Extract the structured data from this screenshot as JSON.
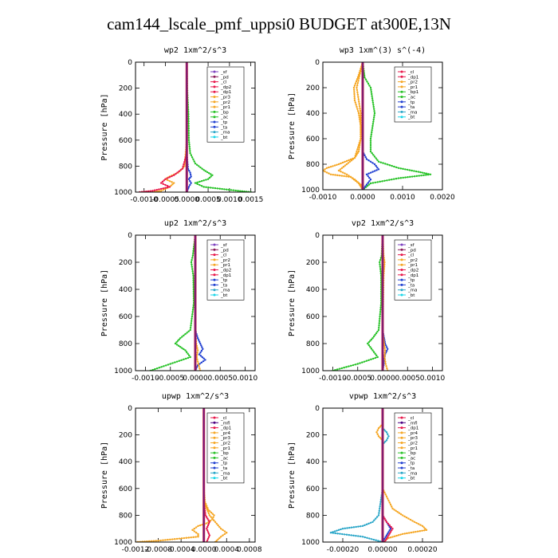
{
  "figure": {
    "title": "cam144_lscale_pmf_uppsi0  BUDGET at300E,13N"
  },
  "colors": {
    "sf": "#7b3fbf",
    "pd": "#8b1a5a",
    "cl": "#e8184b",
    "dp2": "#e8184b",
    "dp1": "#e8184b",
    "pr3": "#f5a623",
    "pr2": "#f5a623",
    "pr1": "#f5a623",
    "pr4": "#f5a623",
    "bp": "#27c227",
    "bp1": "#27c227",
    "ac": "#27c227",
    "tp": "#1f3fd1",
    "ta": "#1f3fd1",
    "ma": "#2aa6c8",
    "bt": "#19d6e8",
    "mfl": "#4b0082"
  },
  "chart_data": [
    {
      "id": "wp2",
      "type": "line",
      "title": "wp2  1xm^2/s^3",
      "ylabel": "Pressure [hPa]",
      "ylim": [
        1000,
        0
      ],
      "xlim": [
        -0.0012,
        0.0016
      ],
      "xticks": [
        -0.001,
        -0.0005,
        0.0,
        0.0005,
        0.001,
        0.0015
      ],
      "xtick_labels": [
        "-0.0010",
        "-0.0005",
        "0.0000",
        "0.0005",
        "0.0010",
        "0.0015"
      ],
      "yticks": [
        0,
        200,
        400,
        600,
        800,
        1000
      ],
      "legend": [
        "_sf",
        "_pd",
        "_cl",
        "_dp2",
        "_dp1",
        "_pr3",
        "_pr2",
        "_pr1",
        "_bp",
        "_ac",
        "_tp",
        "_ta",
        "_ma",
        "_bt"
      ],
      "series": [
        {
          "name": "_ac",
          "color": "#27c227",
          "p": [
            0,
            200,
            400,
            600,
            700,
            780,
            830,
            870,
            900,
            930,
            960,
            990,
            1000
          ],
          "x": [
            0,
            1e-05,
            4e-05,
            5e-05,
            8e-05,
            0.0002,
            0.0004,
            0.0006,
            0.0005,
            0.0002,
            0.0004,
            0.0012,
            0.0015
          ]
        },
        {
          "name": "_pr1",
          "color": "#f5a623",
          "p": [
            0,
            600,
            800,
            850,
            880,
            900,
            930,
            960,
            990,
            1000
          ],
          "x": [
            0,
            0,
            -5e-05,
            -0.0002,
            -0.0004,
            -0.0005,
            -0.0003,
            -0.0004,
            -0.0006,
            -0.0008
          ]
        },
        {
          "name": "_dp1",
          "color": "#e8184b",
          "p": [
            0,
            700,
            820,
            870,
            900,
            930,
            960,
            990,
            1000
          ],
          "x": [
            0,
            0,
            -0.0001,
            -0.0003,
            -0.0005,
            -0.0006,
            -0.0004,
            -0.0008,
            -0.0011
          ]
        },
        {
          "name": "_tp",
          "color": "#1f3fd1",
          "p": [
            0,
            700,
            820,
            850,
            880,
            900,
            930,
            960,
            1000
          ],
          "x": [
            0,
            0,
            3e-05,
            8e-05,
            0.0001,
            5e-05,
            0.0001,
            5e-05,
            0
          ]
        }
      ]
    },
    {
      "id": "wp3",
      "type": "line",
      "title": "wp3  1xm^(3) s^(-4)",
      "ylabel": "Pressure [hPa]",
      "ylim": [
        1000,
        0
      ],
      "xlim": [
        -0.001,
        0.002
      ],
      "xticks": [
        -0.001,
        0.0,
        0.001,
        0.002
      ],
      "xtick_labels": [
        "-0.0010",
        "0.0000",
        "0.0010",
        "0.0020"
      ],
      "yticks": [
        0,
        200,
        400,
        600,
        800,
        1000
      ],
      "legend": [
        "_cl",
        "_dp1",
        "_pr2",
        "_pr1",
        "_bp1",
        "_ac",
        "_tp",
        "_ta",
        "_ma",
        "_bt"
      ],
      "series": [
        {
          "name": "_ac",
          "color": "#27c227",
          "p": [
            0,
            120,
            200,
            300,
            400,
            500,
            600,
            700,
            780,
            830,
            860,
            880,
            910,
            950,
            1000
          ],
          "x": [
            0,
            5e-05,
            0.0002,
            0.00025,
            0.0003,
            0.00025,
            0.0002,
            0.0002,
            0.0004,
            0.0009,
            0.0014,
            0.0017,
            0.0009,
            0.0002,
            0
          ]
        },
        {
          "name": "_pr2",
          "color": "#f5a623",
          "p": [
            0,
            100,
            200,
            300,
            400,
            500,
            600,
            700,
            750,
            800,
            830,
            850,
            880,
            900,
            950,
            1000
          ],
          "x": [
            0,
            -0.0001,
            -0.00022,
            -0.0002,
            -0.0001,
            -5e-05,
            -5e-05,
            -0.0001,
            -0.0002,
            -0.0006,
            -0.0009,
            -0.001,
            -0.0008,
            -0.0003,
            -0.0001,
            0
          ]
        },
        {
          "name": "_pr1",
          "color": "#f5a623",
          "p": [
            0,
            200,
            400,
            600,
            750,
            800,
            850,
            880,
            920,
            960,
            1000
          ],
          "x": [
            0,
            -0.00015,
            -5e-05,
            -5e-05,
            -0.0002,
            -0.0004,
            -0.0006,
            -0.0004,
            -0.0002,
            -5e-05,
            0
          ]
        },
        {
          "name": "_tp",
          "color": "#1f3fd1",
          "p": [
            0,
            700,
            760,
            800,
            840,
            880,
            920,
            960,
            1000
          ],
          "x": [
            0,
            0,
            0.0001,
            0.0003,
            0.0004,
            0.0001,
            0.0002,
            0.0001,
            0
          ]
        }
      ]
    },
    {
      "id": "up2",
      "type": "line",
      "title": "up2  1xm^2/s^3",
      "ylabel": "Pressure [hPa]",
      "ylim": [
        1000,
        0
      ],
      "xlim": [
        -0.0012,
        0.0012
      ],
      "xticks": [
        -0.001,
        -0.0005,
        0.0,
        0.0005,
        0.001
      ],
      "xtick_labels": [
        "-0.0010",
        "-0.0005",
        "0.0000",
        "0.0005",
        "0.0010"
      ],
      "yticks": [
        0,
        200,
        400,
        600,
        800,
        1000
      ],
      "legend": [
        "_sf",
        "_pd",
        "_cl",
        "_pr2",
        "_pr1",
        "_dp2",
        "_dp1",
        "_tp",
        "_ta",
        "_ma",
        "_bt"
      ],
      "series": [
        {
          "name": "_dp1",
          "color": "#27c227",
          "p": [
            0,
            150,
            200,
            300,
            500,
            700,
            760,
            800,
            850,
            900,
            950,
            1000
          ],
          "x": [
            0,
            -5e-05,
            -8e-05,
            -4e-05,
            -3e-05,
            -0.0001,
            -0.0003,
            -0.0004,
            -0.0002,
            -0.0001,
            -0.0005,
            -0.0009
          ]
        },
        {
          "name": "_tp",
          "color": "#1f3fd1",
          "p": [
            0,
            700,
            760,
            800,
            840,
            880,
            920,
            960,
            1000
          ],
          "x": [
            0,
            0,
            5e-05,
            0.0001,
            0.00015,
            8e-05,
            0.0002,
            5e-05,
            0
          ]
        },
        {
          "name": "_pr1",
          "color": "#f5a623",
          "p": [
            0,
            700,
            800,
            850,
            900,
            950,
            1000
          ],
          "x": [
            0,
            0,
            2e-05,
            5e-05,
            3e-05,
            6e-05,
            0.0001
          ]
        }
      ]
    },
    {
      "id": "vp2",
      "type": "line",
      "title": "vp2  1xm^2/s^3",
      "ylabel": "Pressure [hPa]",
      "ylim": [
        1000,
        0
      ],
      "xlim": [
        -0.0012,
        0.0012
      ],
      "xticks": [
        -0.001,
        -0.0005,
        0.0,
        0.0005,
        0.001
      ],
      "xtick_labels": [
        "-0.0010",
        "-0.0005",
        "0.0000",
        "0.0005",
        "0.0010"
      ],
      "yticks": [
        0,
        200,
        400,
        600,
        800,
        1000
      ],
      "legend": [
        "_sf",
        "_pd",
        "_cl",
        "_pr2",
        "_pr1",
        "_dp2",
        "_dp1",
        "_tp",
        "_ta",
        "_ma",
        "_bt"
      ],
      "series": [
        {
          "name": "_dp1",
          "color": "#27c227",
          "p": [
            0,
            150,
            200,
            300,
            500,
            700,
            760,
            800,
            850,
            900,
            950,
            1000
          ],
          "x": [
            0,
            -2e-05,
            -6e-05,
            -3e-05,
            -3e-05,
            -8e-05,
            -0.0002,
            -0.0003,
            -0.0002,
            -0.0001,
            -0.0005,
            -0.001
          ]
        },
        {
          "name": "_tp",
          "color": "#1f3fd1",
          "p": [
            0,
            700,
            760,
            800,
            840,
            880,
            920,
            960,
            1000
          ],
          "x": [
            0,
            0,
            3e-05,
            5e-05,
            0.0001,
            5e-05,
            3e-05,
            2e-05,
            0
          ]
        },
        {
          "name": "_pr1",
          "color": "#f5a623",
          "p": [
            0,
            150,
            200,
            300,
            700,
            800,
            850,
            900,
            950,
            1000
          ],
          "x": [
            0,
            2e-05,
            4e-05,
            2e-05,
            0,
            3e-05,
            5e-05,
            4e-05,
            6e-05,
            0.0001
          ]
        }
      ]
    },
    {
      "id": "upwp",
      "type": "line",
      "title": "upwp  1xm^2/s^3",
      "ylabel": "Pressure [hPa]",
      "ylim": [
        1000,
        0
      ],
      "xlim": [
        -0.0012,
        0.0009
      ],
      "xticks": [
        -0.0012,
        -0.0008,
        -0.0004,
        0.0,
        0.0004,
        0.0008
      ],
      "xtick_labels": [
        "-0.0012",
        "-0.0008",
        "-0.0004",
        "0.0000",
        "0.0004",
        "0.0008"
      ],
      "yticks": [
        0,
        200,
        400,
        600,
        800,
        1000
      ],
      "legend": [
        "_cl",
        "_mfl",
        "_dp1",
        "_pr4",
        "_pr3",
        "_pr2",
        "_pr1",
        "_bp",
        "_ac",
        "_tp",
        "_ta",
        "_ma",
        "_bt"
      ],
      "series": [
        {
          "name": "_pr1",
          "color": "#f5a623",
          "p": [
            0,
            600,
            700,
            760,
            800,
            830,
            860,
            880,
            910,
            940,
            960,
            990,
            1000
          ],
          "x": [
            0,
            0,
            2e-05,
            8e-05,
            0.00018,
            0.00015,
            5e-05,
            -0.0001,
            -0.0002,
            -0.0001,
            -0.0001,
            -0.0008,
            -0.0012
          ]
        },
        {
          "name": "_pr2",
          "color": "#f5a623",
          "p": [
            0,
            700,
            800,
            850,
            900,
            930,
            960,
            1000
          ],
          "x": [
            0,
            0,
            0.0001,
            0.0002,
            0.0003,
            0.0004,
            0.0003,
            0.0002
          ]
        },
        {
          "name": "_dp1",
          "color": "#e8184b",
          "p": [
            0,
            700,
            800,
            850,
            900,
            950,
            1000
          ],
          "x": [
            0,
            0,
            3e-05,
            0.0001,
            5e-05,
            0.0001,
            5e-05
          ]
        }
      ]
    },
    {
      "id": "vpwp",
      "type": "line",
      "title": "vpwp  1xm^2/s^3",
      "ylabel": "Pressure [hPa]",
      "ylim": [
        1000,
        0
      ],
      "xlim": [
        -0.0003,
        0.0003
      ],
      "xticks": [
        -0.0002,
        0.0,
        0.0002
      ],
      "xtick_labels": [
        "-0.00020",
        "0.00000",
        "0.00020"
      ],
      "yticks": [
        0,
        200,
        400,
        600,
        800,
        1000
      ],
      "legend": [
        "_cl",
        "_mfl",
        "_dp1",
        "_pr4",
        "_pr3",
        "_pr2",
        "_pr1",
        "_bp",
        "_ac",
        "_tp",
        "_ta",
        "_ma",
        "_bt"
      ],
      "series": [
        {
          "name": "_pr2",
          "color": "#f5a623",
          "p": [
            0,
            120,
            150,
            180,
            210,
            240,
            300,
            600,
            750,
            800,
            850,
            880,
            910,
            940,
            970,
            1000
          ],
          "x": [
            0,
            0,
            -2e-05,
            -3e-05,
            -2e-05,
            0,
            0,
            0,
            5e-05,
            0.0001,
            0.00016,
            0.0002,
            0.00022,
            0.0001,
            3e-05,
            0
          ]
        },
        {
          "name": "_ma",
          "color": "#2aa6c8",
          "p": [
            0,
            150,
            180,
            210,
            240,
            270,
            300,
            600,
            800,
            850,
            880,
            900,
            930,
            960,
            1000
          ],
          "x": [
            0,
            0,
            2e-05,
            3e-05,
            2e-05,
            0,
            0,
            0,
            -2e-05,
            -5e-05,
            -0.0001,
            -0.0002,
            -0.00026,
            -0.0001,
            0
          ]
        },
        {
          "name": "_tp",
          "color": "#1f3fd1",
          "p": [
            0,
            800,
            850,
            900,
            950,
            1000
          ],
          "x": [
            0,
            0,
            2e-05,
            4e-05,
            2e-05,
            0
          ]
        },
        {
          "name": "_dp1",
          "color": "#e8184b",
          "p": [
            0,
            800,
            850,
            900,
            950,
            1000
          ],
          "x": [
            0,
            0,
            2e-05,
            5e-05,
            3e-05,
            1e-05
          ]
        }
      ]
    }
  ]
}
